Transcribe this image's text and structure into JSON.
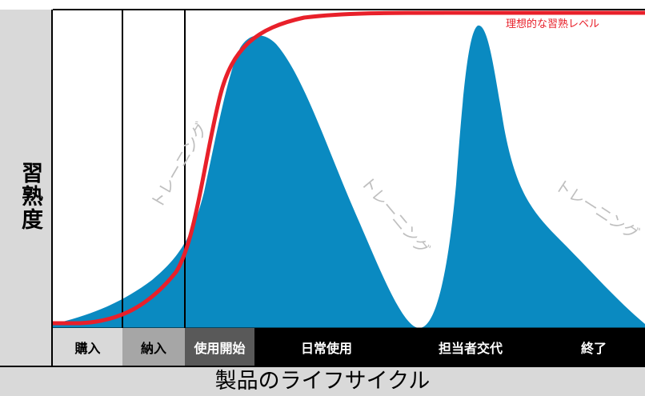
{
  "ylabel": "習熟度",
  "xlabel": "製品のライフサイクル",
  "ideal_label": "理想的な習熟レベル",
  "training_labels": [
    "トレーニング",
    "トレーニング",
    "トレーニング"
  ],
  "stages": [
    {
      "label": "購入",
      "bg": "#d9d9d9",
      "color": "#000000"
    },
    {
      "label": "納入",
      "bg": "#a6a6a6",
      "color": "#000000"
    },
    {
      "label": "使用開始",
      "bg": "#595959",
      "color": "#ffffff"
    },
    {
      "label": "日常使用",
      "bg": "#000000",
      "color": "#ffffff"
    },
    {
      "label": "担当者交代",
      "bg": "#000000",
      "color": "#ffffff"
    },
    {
      "label": "終了",
      "bg": "#000000",
      "color": "#ffffff"
    }
  ],
  "colors": {
    "curve_fill": "#0a8ac1",
    "ideal_line": "#e8202a",
    "training_text": "#bfbfbf",
    "band": "#d9d9d9"
  }
}
